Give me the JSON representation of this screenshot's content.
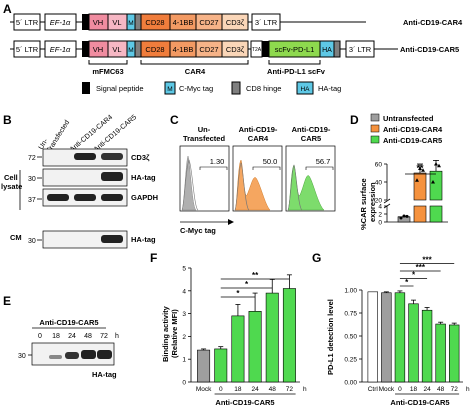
{
  "panel_a": {
    "letter": "A",
    "car4_label": "Anti-CD19-CAR4",
    "car5_label": "Anti-CD19-CAR5",
    "ltr5": "5´ LTR",
    "ltr3": "3´ LTR",
    "promoter": "EF-1α",
    "vh": "VH",
    "vl": "VL",
    "m": "M",
    "cd28": "CD28",
    "bb": "4-1BB",
    "cd27": "CD27",
    "cd3z": "CD3ζ",
    "t2a": "T2A",
    "scfv": "scFv-PD-L1",
    "ha": "HA",
    "bracket_mfmc": "mFMC63",
    "bracket_car4": "CAR4",
    "bracket_pdl1": "Anti-PD-L1 scFv",
    "legend": [
      {
        "key": "signal",
        "label": "Signal peptide",
        "box": "",
        "color": "#000000"
      },
      {
        "key": "myc",
        "label": "C-Myc tag",
        "box": "M",
        "color": "#5ec8e5"
      },
      {
        "key": "cd8",
        "label": "CD8 hinge",
        "box": "",
        "color": "#7f7f7f"
      },
      {
        "key": "ha",
        "label": "HA-tag",
        "box": "HA",
        "color": "#5ec8e5"
      }
    ],
    "colors": {
      "vh": "#f08ca0",
      "vl": "#f6b7c4",
      "cd28": "#f07d3c",
      "bb": "#f39a63",
      "cd27": "#f6b388",
      "cd3z": "#fad6b8",
      "scfv": "#8ed94e",
      "myc": "#5ec8e5"
    }
  },
  "panel_b": {
    "letter": "B",
    "lanes": [
      "Un-\nTransfected",
      "Anti-CD19-CAR4",
      "Anti-CD19-CAR5"
    ],
    "groups": [
      "Cell\nlysate",
      "CM"
    ],
    "markers": [
      "72",
      "30",
      "37",
      "30"
    ],
    "blots": [
      "CD3ζ",
      "HA-tag",
      "GAPDH",
      "HA-tag"
    ]
  },
  "panel_c": {
    "letter": "C",
    "columns": [
      {
        "title": "Un-\nTransfected",
        "value": "1.30",
        "color": "#b0b0b0"
      },
      {
        "title": "Anti-CD19-\nCAR4",
        "value": "50.0",
        "color": "#f5a660"
      },
      {
        "title": "Anti-CD19-\nCAR5",
        "value": "56.7",
        "color": "#7ddc6c"
      }
    ],
    "xlabel": "C-Myc tag"
  },
  "panel_d": {
    "letter": "D",
    "legend": [
      "Untransfected",
      "Anti-CD19-CAR4",
      "Anti-CD19-CAR5"
    ],
    "ylabel": "%CAR surface\nexpression",
    "sig": "**",
    "ticks": [
      "0",
      "2",
      "4",
      "20",
      "40",
      "60"
    ],
    "colors": [
      "#9e9e9e",
      "#f5923e",
      "#4fd94f"
    ]
  },
  "panel_e": {
    "letter": "E",
    "title": "Anti-CD19-CAR5",
    "times": [
      "0",
      "18",
      "24",
      "48",
      "72",
      "h"
    ],
    "marker": "30",
    "blot": "HA-tag"
  },
  "panel_f": {
    "letter": "F",
    "ylabel": "Binding activity\n(Relative MFI)",
    "xcats": [
      "Mock",
      "0",
      "18",
      "24",
      "48",
      "72",
      "h"
    ],
    "xgroup": "Anti-CD19-CAR5",
    "sigs": [
      "*",
      "*",
      "**"
    ],
    "yticks": [
      "0",
      "1",
      "2",
      "3",
      "4",
      "5"
    ]
  },
  "panel_g": {
    "letter": "G",
    "ylabel": "PD-L1 detection level",
    "xcats": [
      "Ctrl",
      "Mock",
      "0",
      "18",
      "24",
      "48",
      "72",
      "h"
    ],
    "xgroup": "Anti-CD19-CAR5",
    "sigs": [
      "*",
      "*",
      "***",
      "***"
    ],
    "yticks": [
      "0.00",
      "0.25",
      "0.50",
      "0.75",
      "1.00"
    ]
  },
  "chart_data": [
    {
      "panel": "D",
      "type": "bar",
      "categories": [
        "Untransfected",
        "Anti-CD19-CAR4",
        "Anti-CD19-CAR5"
      ],
      "values": [
        1.3,
        50,
        52
      ],
      "errors": [
        0.4,
        10,
        12
      ],
      "points": [
        [
          1.0,
          1.5,
          1.4
        ],
        [
          42,
          55,
          53
        ],
        [
          40,
          60,
          58
        ]
      ],
      "axis_break": [
        4,
        20
      ],
      "ylim": [
        0,
        60
      ],
      "ylabel": "%CAR surface expression"
    },
    {
      "panel": "F",
      "type": "bar",
      "categories": [
        "Mock",
        "0",
        "18",
        "24",
        "48",
        "72"
      ],
      "values": [
        1.4,
        1.45,
        2.9,
        3.1,
        3.9,
        4.1
      ],
      "errors": [
        0.05,
        0.1,
        0.5,
        0.8,
        0.6,
        0.6
      ],
      "ylim": [
        0,
        5
      ],
      "ylabel": "Binding activity (Relative MFI)",
      "xlabel": "Anti-CD19-CAR5"
    },
    {
      "panel": "G",
      "type": "bar",
      "categories": [
        "Ctrl",
        "Mock",
        "0",
        "18",
        "24",
        "48",
        "72"
      ],
      "values": [
        0.98,
        0.97,
        0.97,
        0.85,
        0.78,
        0.63,
        0.62
      ],
      "errors": [
        0.0,
        0.01,
        0.02,
        0.04,
        0.03,
        0.02,
        0.02
      ],
      "ylim": [
        0,
        1.0
      ],
      "ylabel": "PD-L1 detection level",
      "xlabel": "Anti-CD19-CAR5"
    }
  ]
}
